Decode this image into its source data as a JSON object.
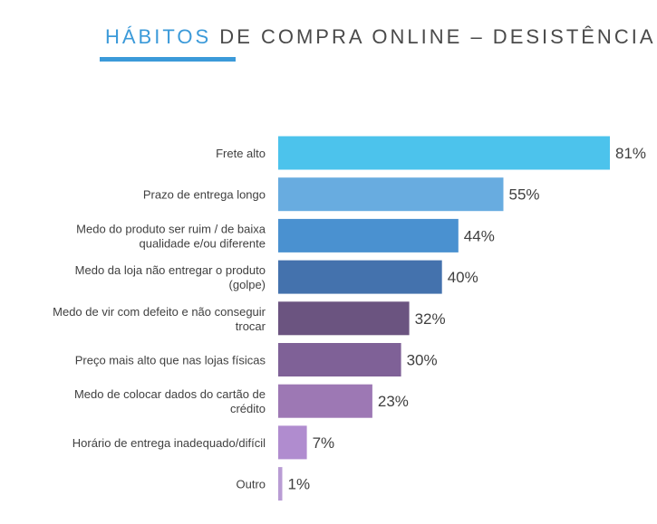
{
  "title": {
    "accent": "HÁBITOS",
    "rest": " DE COMPRA ONLINE – DESISTÊNCIA"
  },
  "chart_data": {
    "type": "bar",
    "orientation": "horizontal",
    "title": "HÁBITOS DE COMPRA ONLINE – DESISTÊNCIA",
    "xlim": [
      0,
      81
    ],
    "unit": "%",
    "categories": [
      [
        "Frete alto"
      ],
      [
        "Prazo de entrega longo"
      ],
      [
        "Medo do produto ser ruim / de baixa",
        "qualidade e/ou diferente"
      ],
      [
        "Medo da loja não entregar o produto",
        "(golpe)"
      ],
      [
        "Medo de vir com defeito e não conseguir",
        "trocar"
      ],
      [
        "Preço mais alto que nas lojas físicas"
      ],
      [
        "Medo de colocar dados do cartão de",
        "crédito"
      ],
      [
        "Horário de entrega inadequado/difícil"
      ],
      [
        "Outro"
      ]
    ],
    "values": [
      81,
      55,
      44,
      40,
      32,
      30,
      23,
      7,
      1
    ],
    "value_labels": [
      "81%",
      "55%",
      "44%",
      "40%",
      "32%",
      "30%",
      "23%",
      "7%",
      "1%"
    ],
    "colors": [
      "#4cc3ec",
      "#68ace0",
      "#4a91d0",
      "#4472ad",
      "#6b5480",
      "#7f6197",
      "#9d78b4",
      "#b08ccf",
      "#b99cd4"
    ]
  }
}
